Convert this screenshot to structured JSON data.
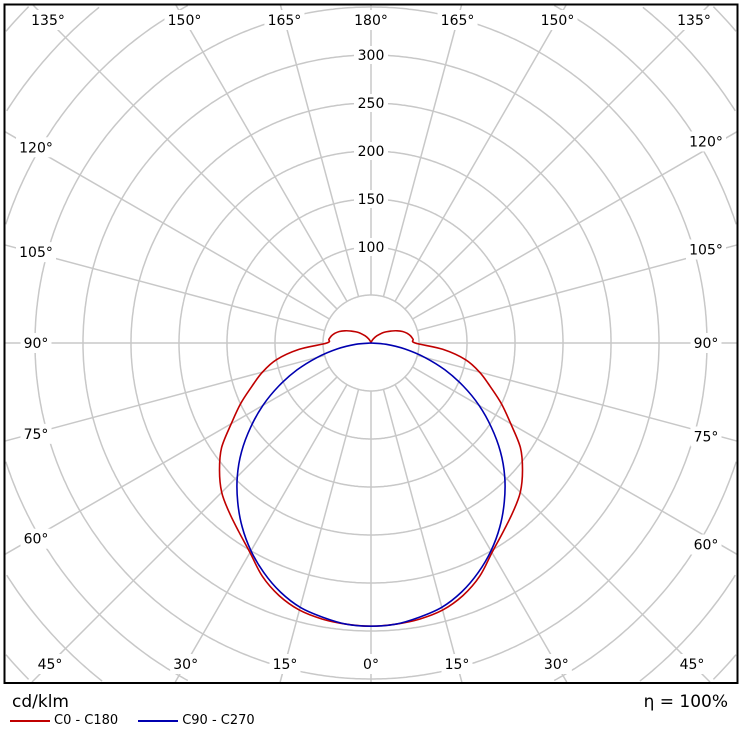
{
  "chart_data": {
    "type": "polar-line",
    "unit_label": "cd/klm",
    "efficiency_label": "η = 100%",
    "radial_ticks": [
      100,
      150,
      200,
      250,
      300
    ],
    "radial_grid": [
      50,
      100,
      150,
      200,
      250,
      300,
      350,
      400,
      450,
      500
    ],
    "angle_ticks": [
      0,
      15,
      30,
      45,
      60,
      75,
      90,
      105,
      120,
      135,
      150,
      165,
      180
    ],
    "colors": {
      "grid": "#c8c8c8",
      "frame": "#000000"
    },
    "series": [
      {
        "name": "C0 - C180",
        "color": "#c00000",
        "angles": [
          0,
          5,
          10,
          15,
          20,
          25,
          30,
          35,
          40,
          45,
          50,
          55,
          60,
          65,
          70,
          75,
          80,
          85,
          90,
          95,
          100,
          105,
          110,
          115,
          120,
          130,
          140,
          150,
          160,
          170,
          180
        ],
        "values": [
          295,
          294,
          292,
          288,
          280,
          268,
          252,
          240,
          230,
          220,
          206,
          190,
          168,
          150,
          132,
          117,
          100,
          75,
          46,
          44,
          42,
          39,
          35,
          30,
          25,
          17,
          10,
          5,
          2,
          0.5,
          0
        ]
      },
      {
        "name": "C90 - C270",
        "color": "#0000b0",
        "angles": [
          0,
          5,
          10,
          15,
          20,
          25,
          30,
          35,
          40,
          45,
          50,
          55,
          60,
          65,
          70,
          75,
          80,
          85,
          90
        ],
        "values": [
          295,
          294,
          290,
          285,
          276,
          264,
          250,
          234,
          216,
          197,
          176,
          153,
          130,
          106,
          82,
          58,
          36,
          16,
          0
        ]
      }
    ]
  }
}
